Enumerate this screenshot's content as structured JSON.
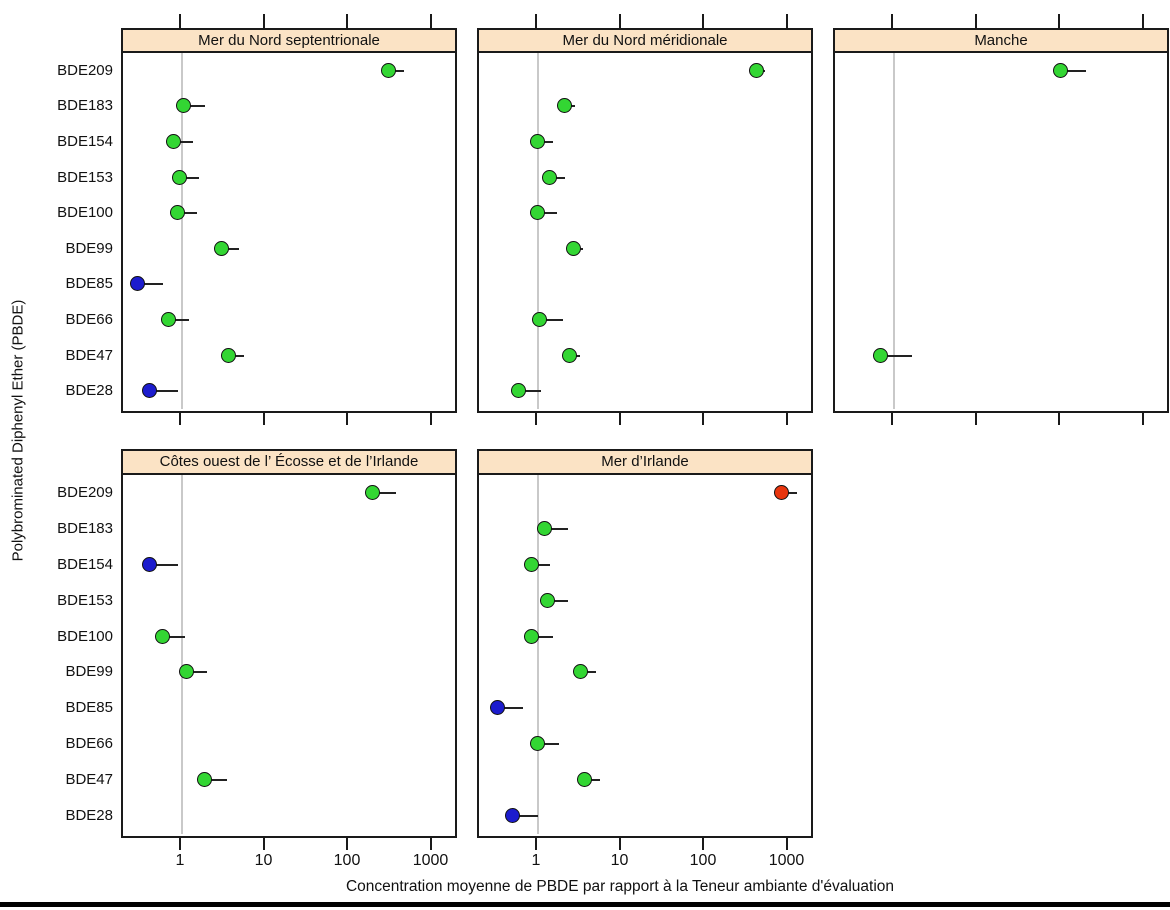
{
  "ylabel": "Polybrominated Diphenyl Ether (PBDE)",
  "xlabel": "Concentration moyenne de PBDE par rapport à la Teneur ambiante d'évaluation",
  "colors": {
    "green": "#33d633",
    "blue": "#1c1ccd",
    "red": "#e8350e",
    "strip_background": "#fbe3c5",
    "reference_line": "#c9c9c9",
    "axis": "#1a1a1a"
  },
  "chart_data": {
    "type": "scatter",
    "x_scale": "log",
    "x_ticks": [
      1,
      10,
      100,
      1000
    ],
    "x_tick_labels": [
      "1",
      "10",
      "100",
      "1000"
    ],
    "x_range": [
      0.19,
      2000
    ],
    "reference_line_x": 1,
    "grid": "off",
    "categories": [
      "BDE209",
      "BDE183",
      "BDE154",
      "BDE153",
      "BDE100",
      "BDE99",
      "BDE85",
      "BDE66",
      "BDE47",
      "BDE28"
    ],
    "panels": [
      {
        "title": "Mer du Nord septentrionale",
        "points": [
          {
            "category": "BDE209",
            "color": "green",
            "value": 300,
            "upper": 460
          },
          {
            "category": "BDE183",
            "color": "green",
            "value": 1.05,
            "upper": 1.9
          },
          {
            "category": "BDE154",
            "color": "green",
            "value": 0.8,
            "upper": 1.35
          },
          {
            "category": "BDE153",
            "color": "green",
            "value": 0.95,
            "upper": 1.6
          },
          {
            "category": "BDE100",
            "color": "green",
            "value": 0.9,
            "upper": 1.5
          },
          {
            "category": "BDE99",
            "color": "green",
            "value": 3.0,
            "upper": 4.8
          },
          {
            "category": "BDE85",
            "color": "blue",
            "value": 0.3,
            "upper": 0.6
          },
          {
            "category": "BDE66",
            "color": "green",
            "value": 0.7,
            "upper": 1.2
          },
          {
            "category": "BDE47",
            "color": "green",
            "value": 3.7,
            "upper": 5.5
          },
          {
            "category": "BDE28",
            "color": "blue",
            "value": 0.41,
            "upper": 0.9
          }
        ]
      },
      {
        "title": "Mer du Nord méridionale",
        "points": [
          {
            "category": "BDE209",
            "color": "green",
            "value": 420,
            "upper": 530
          },
          {
            "category": "BDE183",
            "color": "green",
            "value": 2.1,
            "upper": 2.8
          },
          {
            "category": "BDE154",
            "color": "green",
            "value": 1.0,
            "upper": 1.5
          },
          {
            "category": "BDE153",
            "color": "green",
            "value": 1.4,
            "upper": 2.1
          },
          {
            "category": "BDE100",
            "color": "green",
            "value": 1.0,
            "upper": 1.7
          },
          {
            "category": "BDE99",
            "color": "green",
            "value": 2.7,
            "upper": 3.5
          },
          {
            "category": "BDE66",
            "color": "green",
            "value": 1.05,
            "upper": 2.0
          },
          {
            "category": "BDE47",
            "color": "green",
            "value": 2.4,
            "upper": 3.2
          },
          {
            "category": "BDE28",
            "color": "green",
            "value": 0.6,
            "upper": 1.1
          }
        ]
      },
      {
        "title": "Manche",
        "points": [
          {
            "category": "BDE209",
            "color": "green",
            "value": 100,
            "upper": 200
          },
          {
            "category": "BDE47",
            "color": "green",
            "value": 0.7,
            "upper": 1.65
          }
        ]
      },
      {
        "title": "Côtes ouest de l’ Écosse et de l’Irlande",
        "points": [
          {
            "category": "BDE209",
            "color": "green",
            "value": 195,
            "upper": 365
          },
          {
            "category": "BDE154",
            "color": "blue",
            "value": 0.41,
            "upper": 0.9
          },
          {
            "category": "BDE100",
            "color": "green",
            "value": 0.6,
            "upper": 1.1
          },
          {
            "category": "BDE99",
            "color": "green",
            "value": 1.15,
            "upper": 2.0
          },
          {
            "category": "BDE47",
            "color": "green",
            "value": 1.9,
            "upper": 3.5
          }
        ]
      },
      {
        "title": "Mer d’Irlande",
        "points": [
          {
            "category": "BDE209",
            "color": "red",
            "value": 830,
            "upper": 1270
          },
          {
            "category": "BDE183",
            "color": "green",
            "value": 1.2,
            "upper": 2.3
          },
          {
            "category": "BDE154",
            "color": "green",
            "value": 0.84,
            "upper": 1.4
          },
          {
            "category": "BDE153",
            "color": "green",
            "value": 1.3,
            "upper": 2.3
          },
          {
            "category": "BDE100",
            "color": "green",
            "value": 0.84,
            "upper": 1.5
          },
          {
            "category": "BDE99",
            "color": "green",
            "value": 3.3,
            "upper": 5.0
          },
          {
            "category": "BDE85",
            "color": "blue",
            "value": 0.33,
            "upper": 0.67
          },
          {
            "category": "BDE66",
            "color": "green",
            "value": 1.0,
            "upper": 1.8
          },
          {
            "category": "BDE47",
            "color": "green",
            "value": 3.7,
            "upper": 5.5
          },
          {
            "category": "BDE28",
            "color": "blue",
            "value": 0.5,
            "upper": 1.0
          }
        ]
      }
    ]
  }
}
